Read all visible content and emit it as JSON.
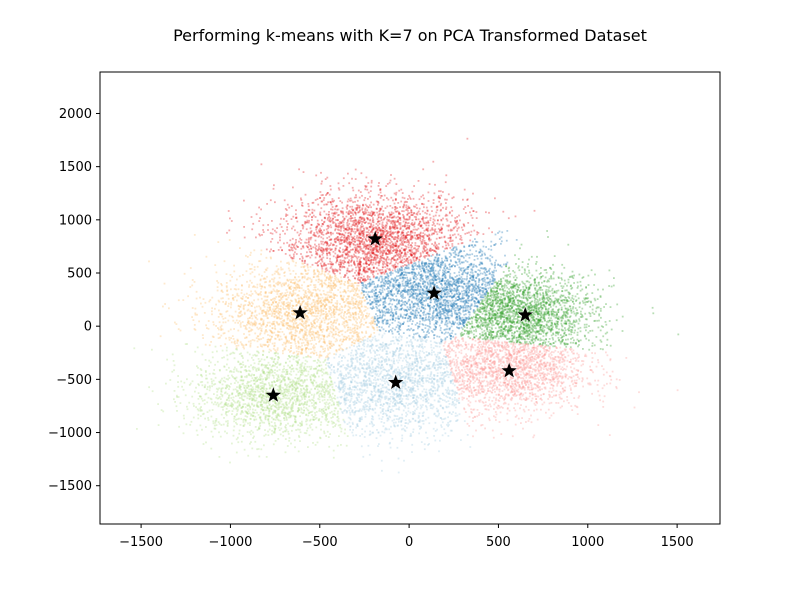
{
  "chart_data": {
    "type": "scatter",
    "title": "Performing k-means with K=7 on PCA Transformed Dataset",
    "xlabel": "",
    "ylabel": "",
    "xlim": [
      -1730,
      1740
    ],
    "ylim": [
      -1860,
      2390
    ],
    "x_ticks": [
      -1500,
      -1000,
      -500,
      0,
      500,
      1000,
      1500
    ],
    "x_tick_labels": [
      "−1500",
      "−1000",
      "−500",
      "0",
      "500",
      "1000",
      "1500"
    ],
    "y_ticks": [
      -1500,
      -1000,
      -500,
      0,
      500,
      1000,
      1500,
      2000
    ],
    "y_tick_labels": [
      "−1500",
      "−1000",
      "−500",
      "0",
      "500",
      "1000",
      "1500",
      "2000"
    ],
    "grid": false,
    "legend": "none",
    "series": [
      {
        "color": "#e31a1c",
        "centroid": [
          -190,
          820
        ],
        "spread": [
          270,
          220
        ],
        "density": 2600
      },
      {
        "color": "#1f78b4",
        "centroid": [
          140,
          310
        ],
        "spread": [
          240,
          210
        ],
        "density": 2200
      },
      {
        "color": "#33a02c",
        "centroid": [
          650,
          105
        ],
        "spread": [
          200,
          200
        ],
        "density": 2000
      },
      {
        "color": "#fdbf6f",
        "centroid": [
          -610,
          125
        ],
        "spread": [
          250,
          230
        ],
        "density": 2000
      },
      {
        "color": "#fb9a99",
        "centroid": [
          560,
          -420
        ],
        "spread": [
          220,
          200
        ],
        "density": 1800
      },
      {
        "color": "#a6cee3",
        "centroid": [
          -75,
          -530
        ],
        "spread": [
          230,
          250
        ],
        "density": 1800
      },
      {
        "color": "#b2df8a",
        "centroid": [
          -760,
          -650
        ],
        "spread": [
          230,
          210
        ],
        "density": 1800
      }
    ],
    "centroid_marker": "star",
    "centroid_color": "#000000"
  }
}
